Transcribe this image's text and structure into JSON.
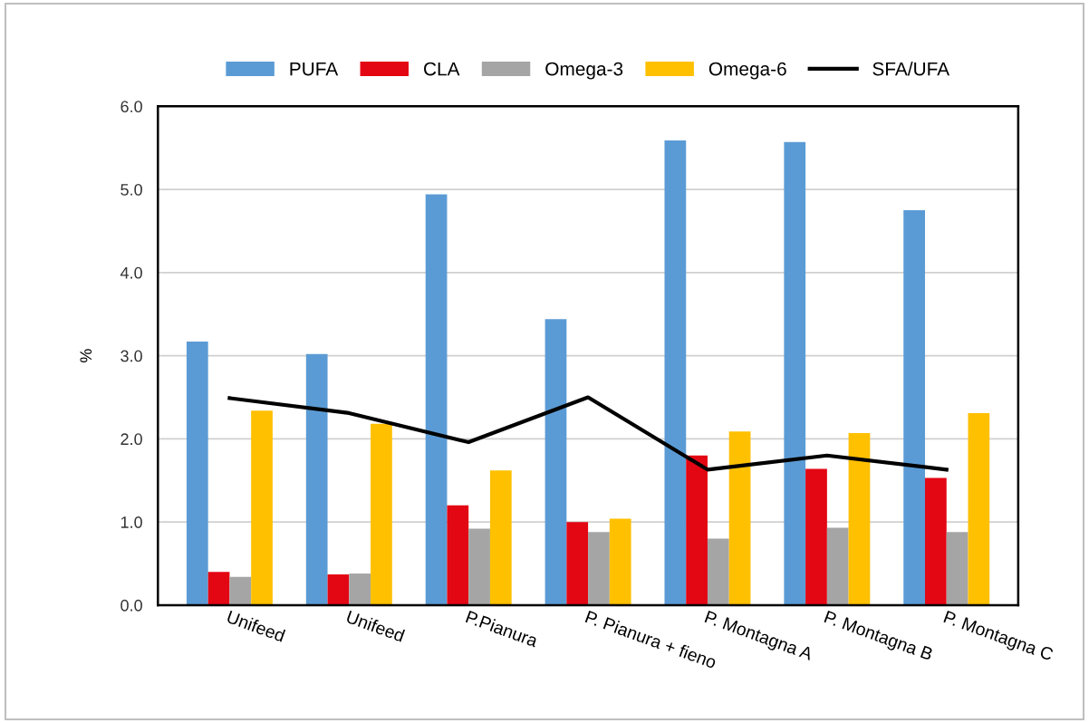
{
  "chart_data": {
    "type": "bar",
    "ylabel": "%",
    "categories": [
      "Unifeed",
      "Unifeed",
      "P.Pianura",
      "P. Pianura + fieno",
      "P. Montagna A",
      "P. Montagna B",
      "P. Montagna C"
    ],
    "series": [
      {
        "name": "PUFA",
        "color": "#5b9bd5",
        "values": [
          3.17,
          3.02,
          4.94,
          3.44,
          5.59,
          5.57,
          4.75
        ]
      },
      {
        "name": "CLA",
        "color": "#e30613",
        "values": [
          0.4,
          0.37,
          1.2,
          1.0,
          1.8,
          1.64,
          1.53
        ]
      },
      {
        "name": "Omega-3",
        "color": "#a5a5a5",
        "values": [
          0.34,
          0.38,
          0.92,
          0.88,
          0.8,
          0.93,
          0.88
        ]
      },
      {
        "name": "Omega-6",
        "color": "#ffc000",
        "values": [
          2.34,
          2.18,
          1.62,
          1.04,
          2.09,
          2.07,
          2.31
        ]
      },
      {
        "name": "SFA/UFA",
        "type": "line",
        "color": "#000000",
        "values": [
          2.49,
          2.31,
          1.96,
          2.5,
          1.63,
          1.8,
          1.63
        ]
      }
    ],
    "ylim": [
      0,
      6
    ],
    "yticks": [
      {
        "value": 0,
        "label": "0.0"
      },
      {
        "value": 1,
        "label": "1.0"
      },
      {
        "value": 2,
        "label": "2.0"
      },
      {
        "value": 3,
        "label": "3.0"
      },
      {
        "value": 4,
        "label": "4.0"
      },
      {
        "value": 5,
        "label": "5.0"
      },
      {
        "value": 6,
        "label": "6.0"
      }
    ],
    "grid": "y",
    "legend": "top",
    "marker": "none",
    "line_style": "solid"
  }
}
